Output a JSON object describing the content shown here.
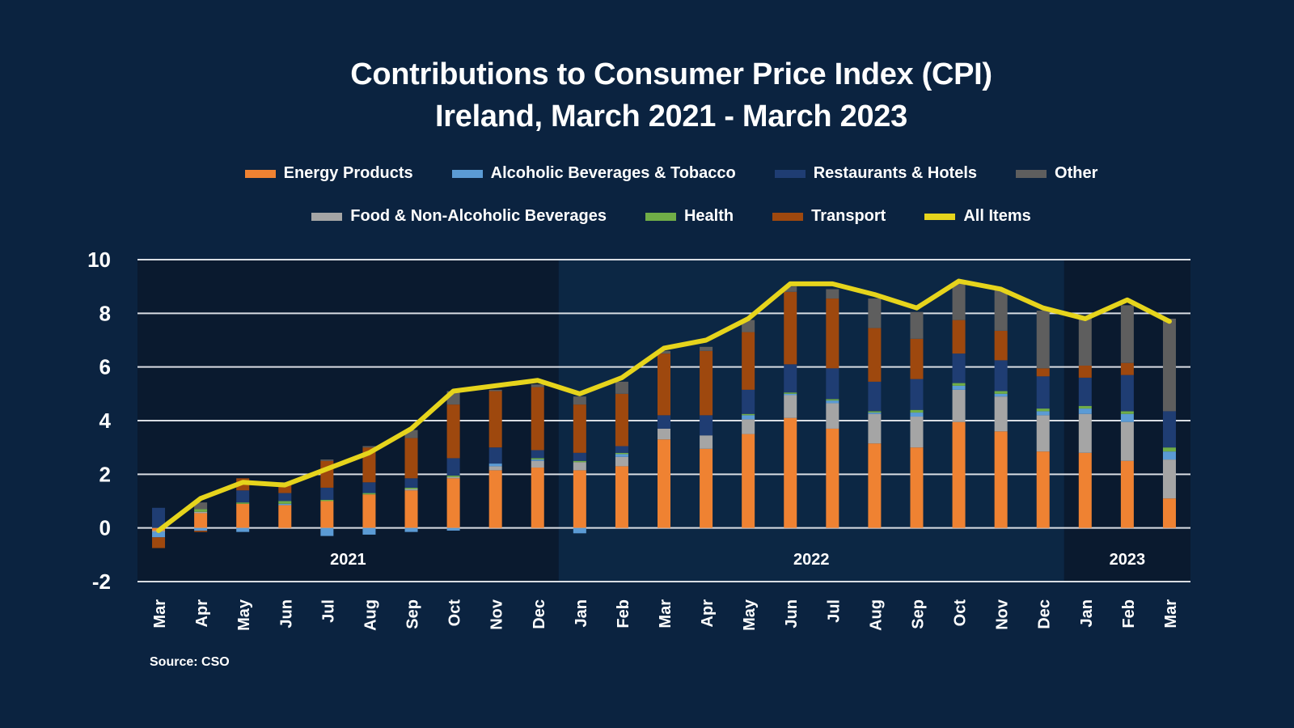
{
  "title_line1": "Contributions to Consumer Price Index (CPI)",
  "title_line2": "Ireland, March 2021 - March 2023",
  "source": "Source: CSO",
  "legend": [
    {
      "key": "energy",
      "label": "Energy Products",
      "color": "#ef8232"
    },
    {
      "key": "alcohol",
      "label": "Alcoholic Beverages & Tobacco",
      "color": "#5b9bd5"
    },
    {
      "key": "restaurants",
      "label": "Restaurants & Hotels",
      "color": "#1f3d73"
    },
    {
      "key": "other",
      "label": "Other",
      "color": "#5e5e5e"
    },
    {
      "key": "food",
      "label": "Food & Non-Alcoholic Beverages",
      "color": "#a5a5a5"
    },
    {
      "key": "health",
      "label": "Health",
      "color": "#70ad47"
    },
    {
      "key": "transport",
      "label": "Transport",
      "color": "#9e480e"
    },
    {
      "key": "all",
      "label": "All Items",
      "color": "#e6d41c"
    }
  ],
  "chart_data": {
    "type": "bar",
    "stacked": true,
    "categories": [
      "Mar",
      "Apr",
      "May",
      "Jun",
      "Jul",
      "Aug",
      "Sep",
      "Oct",
      "Nov",
      "Dec",
      "Jan",
      "Feb",
      "Mar",
      "Apr",
      "May",
      "Jun",
      "Jul",
      "Aug",
      "Sep",
      "Oct",
      "Nov",
      "Dec",
      "Jan",
      "Feb",
      "Mar"
    ],
    "year_bands": [
      {
        "label": "2021",
        "from": 0,
        "to": 9,
        "color": "#0a1a2f"
      },
      {
        "label": "2022",
        "from": 10,
        "to": 21,
        "color": "#0c2744"
      },
      {
        "label": "2023",
        "from": 22,
        "to": 24,
        "color": "#0a1a2f"
      }
    ],
    "ylim": [
      -2,
      10
    ],
    "yticks": [
      -2,
      0,
      2,
      4,
      6,
      8,
      10
    ],
    "grid": true,
    "series": [
      {
        "name": "Energy Products",
        "color": "#ef8232",
        "values": [
          -0.1,
          0.55,
          0.9,
          0.85,
          1.0,
          1.25,
          1.4,
          1.85,
          2.15,
          2.25,
          2.15,
          2.3,
          3.3,
          2.95,
          3.5,
          4.1,
          3.7,
          3.15,
          3.0,
          3.95,
          3.6,
          2.85,
          2.8,
          2.5,
          1.1
        ]
      },
      {
        "name": "Food & Non-Alcoholic Beverages",
        "color": "#a5a5a5",
        "values": [
          -0.05,
          0.05,
          0.0,
          0.0,
          0.0,
          0.0,
          0.05,
          0.05,
          0.15,
          0.25,
          0.3,
          0.35,
          0.4,
          0.5,
          0.55,
          0.85,
          0.95,
          1.1,
          1.15,
          1.2,
          1.3,
          1.35,
          1.45,
          1.45,
          1.45
        ]
      },
      {
        "name": "Alcoholic Beverages & Tobacco",
        "color": "#5b9bd5",
        "values": [
          -0.2,
          -0.1,
          -0.15,
          0.05,
          -0.3,
          -0.25,
          -0.15,
          -0.1,
          0.1,
          0.05,
          -0.2,
          0.1,
          0.0,
          0.0,
          0.15,
          0.05,
          0.1,
          0.05,
          0.15,
          0.15,
          0.1,
          0.15,
          0.2,
          0.3,
          0.3
        ]
      },
      {
        "name": "Health",
        "color": "#70ad47",
        "values": [
          0.0,
          0.1,
          0.05,
          0.1,
          0.05,
          0.05,
          0.05,
          0.05,
          0.0,
          0.05,
          0.05,
          0.05,
          0.0,
          0.0,
          0.05,
          0.05,
          0.05,
          0.05,
          0.1,
          0.1,
          0.1,
          0.1,
          0.1,
          0.1,
          0.15
        ]
      },
      {
        "name": "Restaurants & Hotels",
        "color": "#1f3d73",
        "values": [
          0.75,
          0.0,
          0.45,
          0.3,
          0.45,
          0.4,
          0.35,
          0.65,
          0.6,
          0.3,
          0.3,
          0.25,
          0.5,
          0.75,
          0.9,
          1.05,
          1.15,
          1.1,
          1.15,
          1.1,
          1.15,
          1.2,
          1.05,
          1.35,
          1.35
        ]
      },
      {
        "name": "Transport",
        "color": "#9e480e",
        "values": [
          -0.4,
          -0.05,
          0.45,
          0.35,
          1.0,
          1.3,
          1.5,
          2.0,
          2.1,
          2.35,
          1.8,
          1.95,
          2.3,
          2.4,
          2.15,
          2.7,
          2.6,
          2.0,
          1.5,
          1.25,
          1.1,
          0.3,
          0.45,
          0.45,
          0.0
        ]
      },
      {
        "name": "Other",
        "color": "#5e5e5e",
        "values": [
          0.0,
          0.25,
          0.0,
          0.05,
          0.05,
          0.05,
          0.3,
          0.5,
          0.05,
          0.1,
          0.3,
          0.45,
          0.1,
          0.15,
          0.45,
          0.2,
          0.35,
          1.1,
          1.0,
          1.4,
          1.55,
          2.15,
          1.85,
          2.15,
          3.45
        ]
      }
    ],
    "line_series": {
      "name": "All Items",
      "color": "#e6d41c",
      "values": [
        -0.1,
        1.1,
        1.7,
        1.6,
        2.2,
        2.8,
        3.7,
        5.1,
        5.3,
        5.5,
        5.0,
        5.6,
        6.7,
        7.0,
        7.8,
        9.1,
        9.1,
        8.7,
        8.2,
        9.2,
        8.9,
        8.2,
        7.8,
        8.5,
        7.7
      ]
    }
  }
}
